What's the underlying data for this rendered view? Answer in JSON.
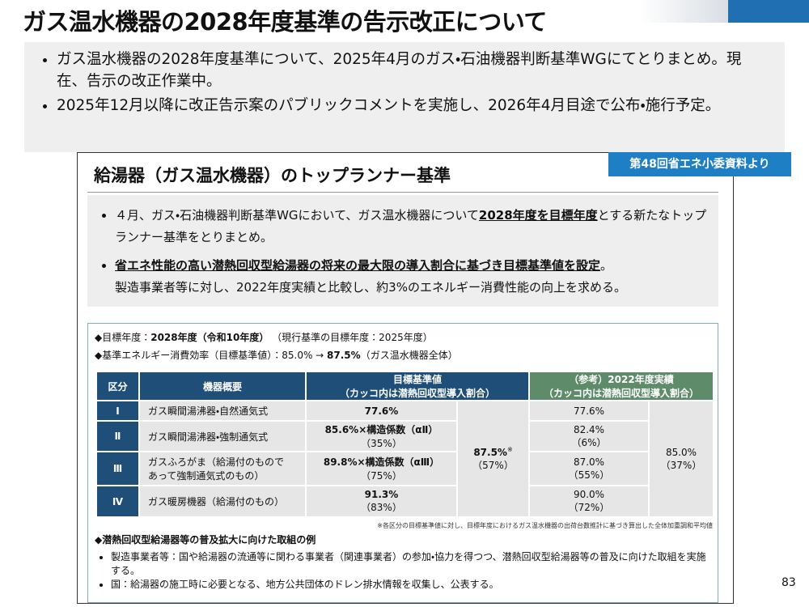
{
  "header": {
    "title": "ガス温水機器の2028年度基準の告示改正について"
  },
  "summary": {
    "bullets": [
      "ガス温水機器の2028年度基準について、2025年4月のガス・石油機器判断基準WGにてとりまとめ。現在、告示の改正作業中。",
      "2025年12月以降に改正告示案のパブリックコメントを実施し、2026年4月目途で公布・施行予定。"
    ]
  },
  "slide": {
    "title": "給湯器（ガス温水機器）のトップランナー基準",
    "badge": "第48回省エネ小委資料より",
    "bullets": [
      [
        "４月、ガス・石油機器判断基準WGにおいて、ガス温水機器について",
        "2028年度を目標年度",
        "とする新たなトップランナー基準をとりまとめ。"
      ],
      [
        "省エネ性能の高い潜熱回収型給湯器の将来の最大限の導入割合に基づき目標基準値を設定",
        "。",
        "製造事業者等に対し、2022年度実績と比較し、約3%のエネルギー消費性能の向上を求める。"
      ]
    ],
    "info": [
      [
        "◆目標年度：",
        "2028年度（令和10年度）",
        "（現行基準の目標年度：2025年度）"
      ],
      [
        "◆基準エネルギー消費効率（目標基準値）：85.0% → ",
        "87.5%",
        "（ガス温水機器全体）"
      ]
    ],
    "table": {
      "headers": [
        "区分",
        [
          "機器概要"
        ],
        [
          "目標基準値",
          "（カッコ内は潜熱回収型導入割合）"
        ],
        [
          "（参考）2022年度実績",
          "（カッコ内は潜熱回収型導入割合）"
        ]
      ],
      "rows": [
        [
          "Ⅰ",
          [
            "ガス瞬間湯沸器・自然通気式"
          ],
          [
            "77.6%"
          ],
          [
            "77.6%"
          ]
        ],
        [
          "Ⅱ",
          [
            "ガス瞬間湯沸器・強制通気式"
          ],
          [
            "85.6%×構造係数（αⅡ）",
            "（35%）"
          ],
          [
            "82.4%",
            "（6%）"
          ]
        ],
        [
          "Ⅲ",
          [
            "ガスふろがま（給湯付のもので",
            "あって強制通気式のもの）"
          ],
          [
            "89.8%×構造係数（αⅢ）",
            "（75%）"
          ],
          [
            "87.0%",
            "（55%）"
          ]
        ],
        [
          "Ⅳ",
          [
            "ガス暖房機器（給湯付のもの）"
          ],
          [
            "91.3%",
            "（83%）"
          ],
          [
            "90.0%",
            "（72%）"
          ]
        ]
      ],
      "target_total": [
        "87.5%",
        "※",
        "（57%）"
      ],
      "actual_total": [
        "85.0%",
        "（37%）"
      ]
    },
    "footnote": "※各区分の目標基準値に対し、目標年度におけるガス温水機器の出荷台数推計に基づき算出した全体加重調和平均値",
    "measures_title": "◆潜熱回収型給湯器等の普及拡大に向けた取組の例",
    "measures": [
      "製造事業者等：国や給湯器の流通等に関わる事業者（関連事業者）の参加・協力を得つつ、潜熱回収型給湯器等の普及に向けた取組を実施する。",
      "国：給湯器の施工時に必要となる、地方公共団体のドレン排水情報を収集し、公表する。"
    ]
  },
  "page_number": "83"
}
